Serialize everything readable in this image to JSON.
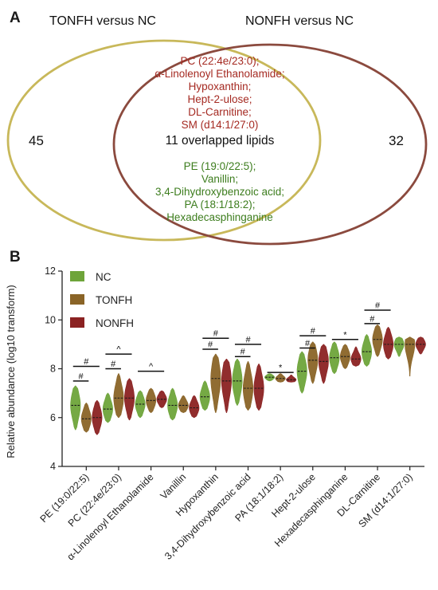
{
  "venn": {
    "panel_label": "A",
    "left_title": "TONFH versus NC",
    "right_title": "NONFH versus NC",
    "left_count": "45",
    "right_count": "32",
    "overlap_label": "11 overlapped lipids",
    "left_color": "#c8b85a",
    "right_color": "#8b4a3e",
    "red_items": [
      "PC (22:4e/23:0);",
      "α-Linolenoyl Ethanolamide;",
      "Hypoxanthin;",
      "Hept-2-ulose;",
      "DL-Carnitine;",
      "SM (d14:1/27:0)"
    ],
    "green_items": [
      "PE (19:0/22:5);",
      "Vanillin;",
      "3,4-Dihydroxybenzoic acid;",
      "PA (18:1/18:2);",
      "Hexadecasphinganine"
    ],
    "red_color": "#a52a22",
    "green_color": "#3d7d1e"
  },
  "chart_data": {
    "type": "violin",
    "panel_label": "B",
    "ylabel": "Relative abundance (log10 transform)",
    "ylim": [
      4,
      12
    ],
    "yticks": [
      4,
      6,
      8,
      10,
      12
    ],
    "categories": [
      "PE (19:0/22:5)",
      "PC (22:4e/23:0)",
      "α-Linolenoyl Ethanolamide",
      "Vanillin",
      "Hypoxanthin",
      "3,4-Dihydroxybenzoic acid",
      "PA (18:1/18:2)",
      "Hept-2-ulose",
      "Hexadecasphinganine",
      "DL-Carnitine",
      "SM (d14:1/27:0)"
    ],
    "legend": {
      "position": "top-left"
    },
    "series": [
      {
        "name": "NC",
        "color": "#6ea43a",
        "median": [
          6.5,
          6.35,
          6.55,
          6.5,
          6.85,
          7.5,
          7.65,
          7.9,
          8.45,
          8.7,
          9.0
        ],
        "min": [
          5.5,
          5.8,
          6.0,
          5.9,
          6.3,
          6.5,
          7.5,
          7.0,
          7.8,
          8.1,
          8.5
        ],
        "max": [
          7.3,
          7.0,
          7.1,
          7.2,
          7.5,
          8.4,
          7.8,
          8.7,
          9.1,
          9.4,
          9.3
        ]
      },
      {
        "name": "TONFH",
        "color": "#8a6427",
        "median": [
          5.95,
          6.8,
          6.7,
          6.5,
          7.6,
          7.2,
          7.6,
          8.35,
          8.5,
          9.2,
          9.0
        ],
        "min": [
          5.4,
          6.0,
          6.2,
          6.2,
          6.2,
          6.3,
          7.45,
          7.4,
          8.0,
          8.5,
          7.7
        ],
        "max": [
          6.6,
          7.8,
          7.2,
          6.9,
          8.6,
          8.3,
          7.8,
          9.1,
          9.0,
          9.8,
          9.3
        ]
      },
      {
        "name": "NONFH",
        "color": "#8b2222",
        "median": [
          6.0,
          6.8,
          6.75,
          6.4,
          7.5,
          7.2,
          7.55,
          8.3,
          8.4,
          9.0,
          9.0
        ],
        "min": [
          5.3,
          5.9,
          6.4,
          6.0,
          6.2,
          6.3,
          7.45,
          7.4,
          8.1,
          8.4,
          8.6
        ],
        "max": [
          6.7,
          7.6,
          7.1,
          6.9,
          8.4,
          8.2,
          7.75,
          9.0,
          8.9,
          9.7,
          9.3
        ]
      }
    ],
    "significance": [
      {
        "category": 0,
        "from": 0,
        "to": 1,
        "label": "#",
        "y": 7.5
      },
      {
        "category": 0,
        "from": 0,
        "to": 2,
        "label": "#",
        "y": 8.1
      },
      {
        "category": 1,
        "from": 0,
        "to": 1,
        "label": "#",
        "y": 8.0
      },
      {
        "category": 1,
        "from": 0,
        "to": 2,
        "label": "^",
        "y": 8.6
      },
      {
        "category": 2,
        "from": 0,
        "to": 2,
        "label": "^",
        "y": 7.9
      },
      {
        "category": 4,
        "from": 0,
        "to": 1,
        "label": "#",
        "y": 8.8
      },
      {
        "category": 4,
        "from": 0,
        "to": 2,
        "label": "#",
        "y": 9.25
      },
      {
        "category": 5,
        "from": 0,
        "to": 1,
        "label": "#",
        "y": 8.5
      },
      {
        "category": 5,
        "from": 0,
        "to": 2,
        "label": "#",
        "y": 9.0
      },
      {
        "category": 6,
        "from": 0,
        "to": 2,
        "label": "*",
        "y": 7.85
      },
      {
        "category": 7,
        "from": 0,
        "to": 1,
        "label": "#",
        "y": 8.85
      },
      {
        "category": 7,
        "from": 0,
        "to": 2,
        "label": "#",
        "y": 9.35
      },
      {
        "category": 8,
        "from": 0,
        "to": 2,
        "label": "*",
        "y": 9.2
      },
      {
        "category": 9,
        "from": 0,
        "to": 1,
        "label": "#",
        "y": 9.85
      },
      {
        "category": 9,
        "from": 0,
        "to": 2,
        "label": "#",
        "y": 10.4
      }
    ]
  }
}
